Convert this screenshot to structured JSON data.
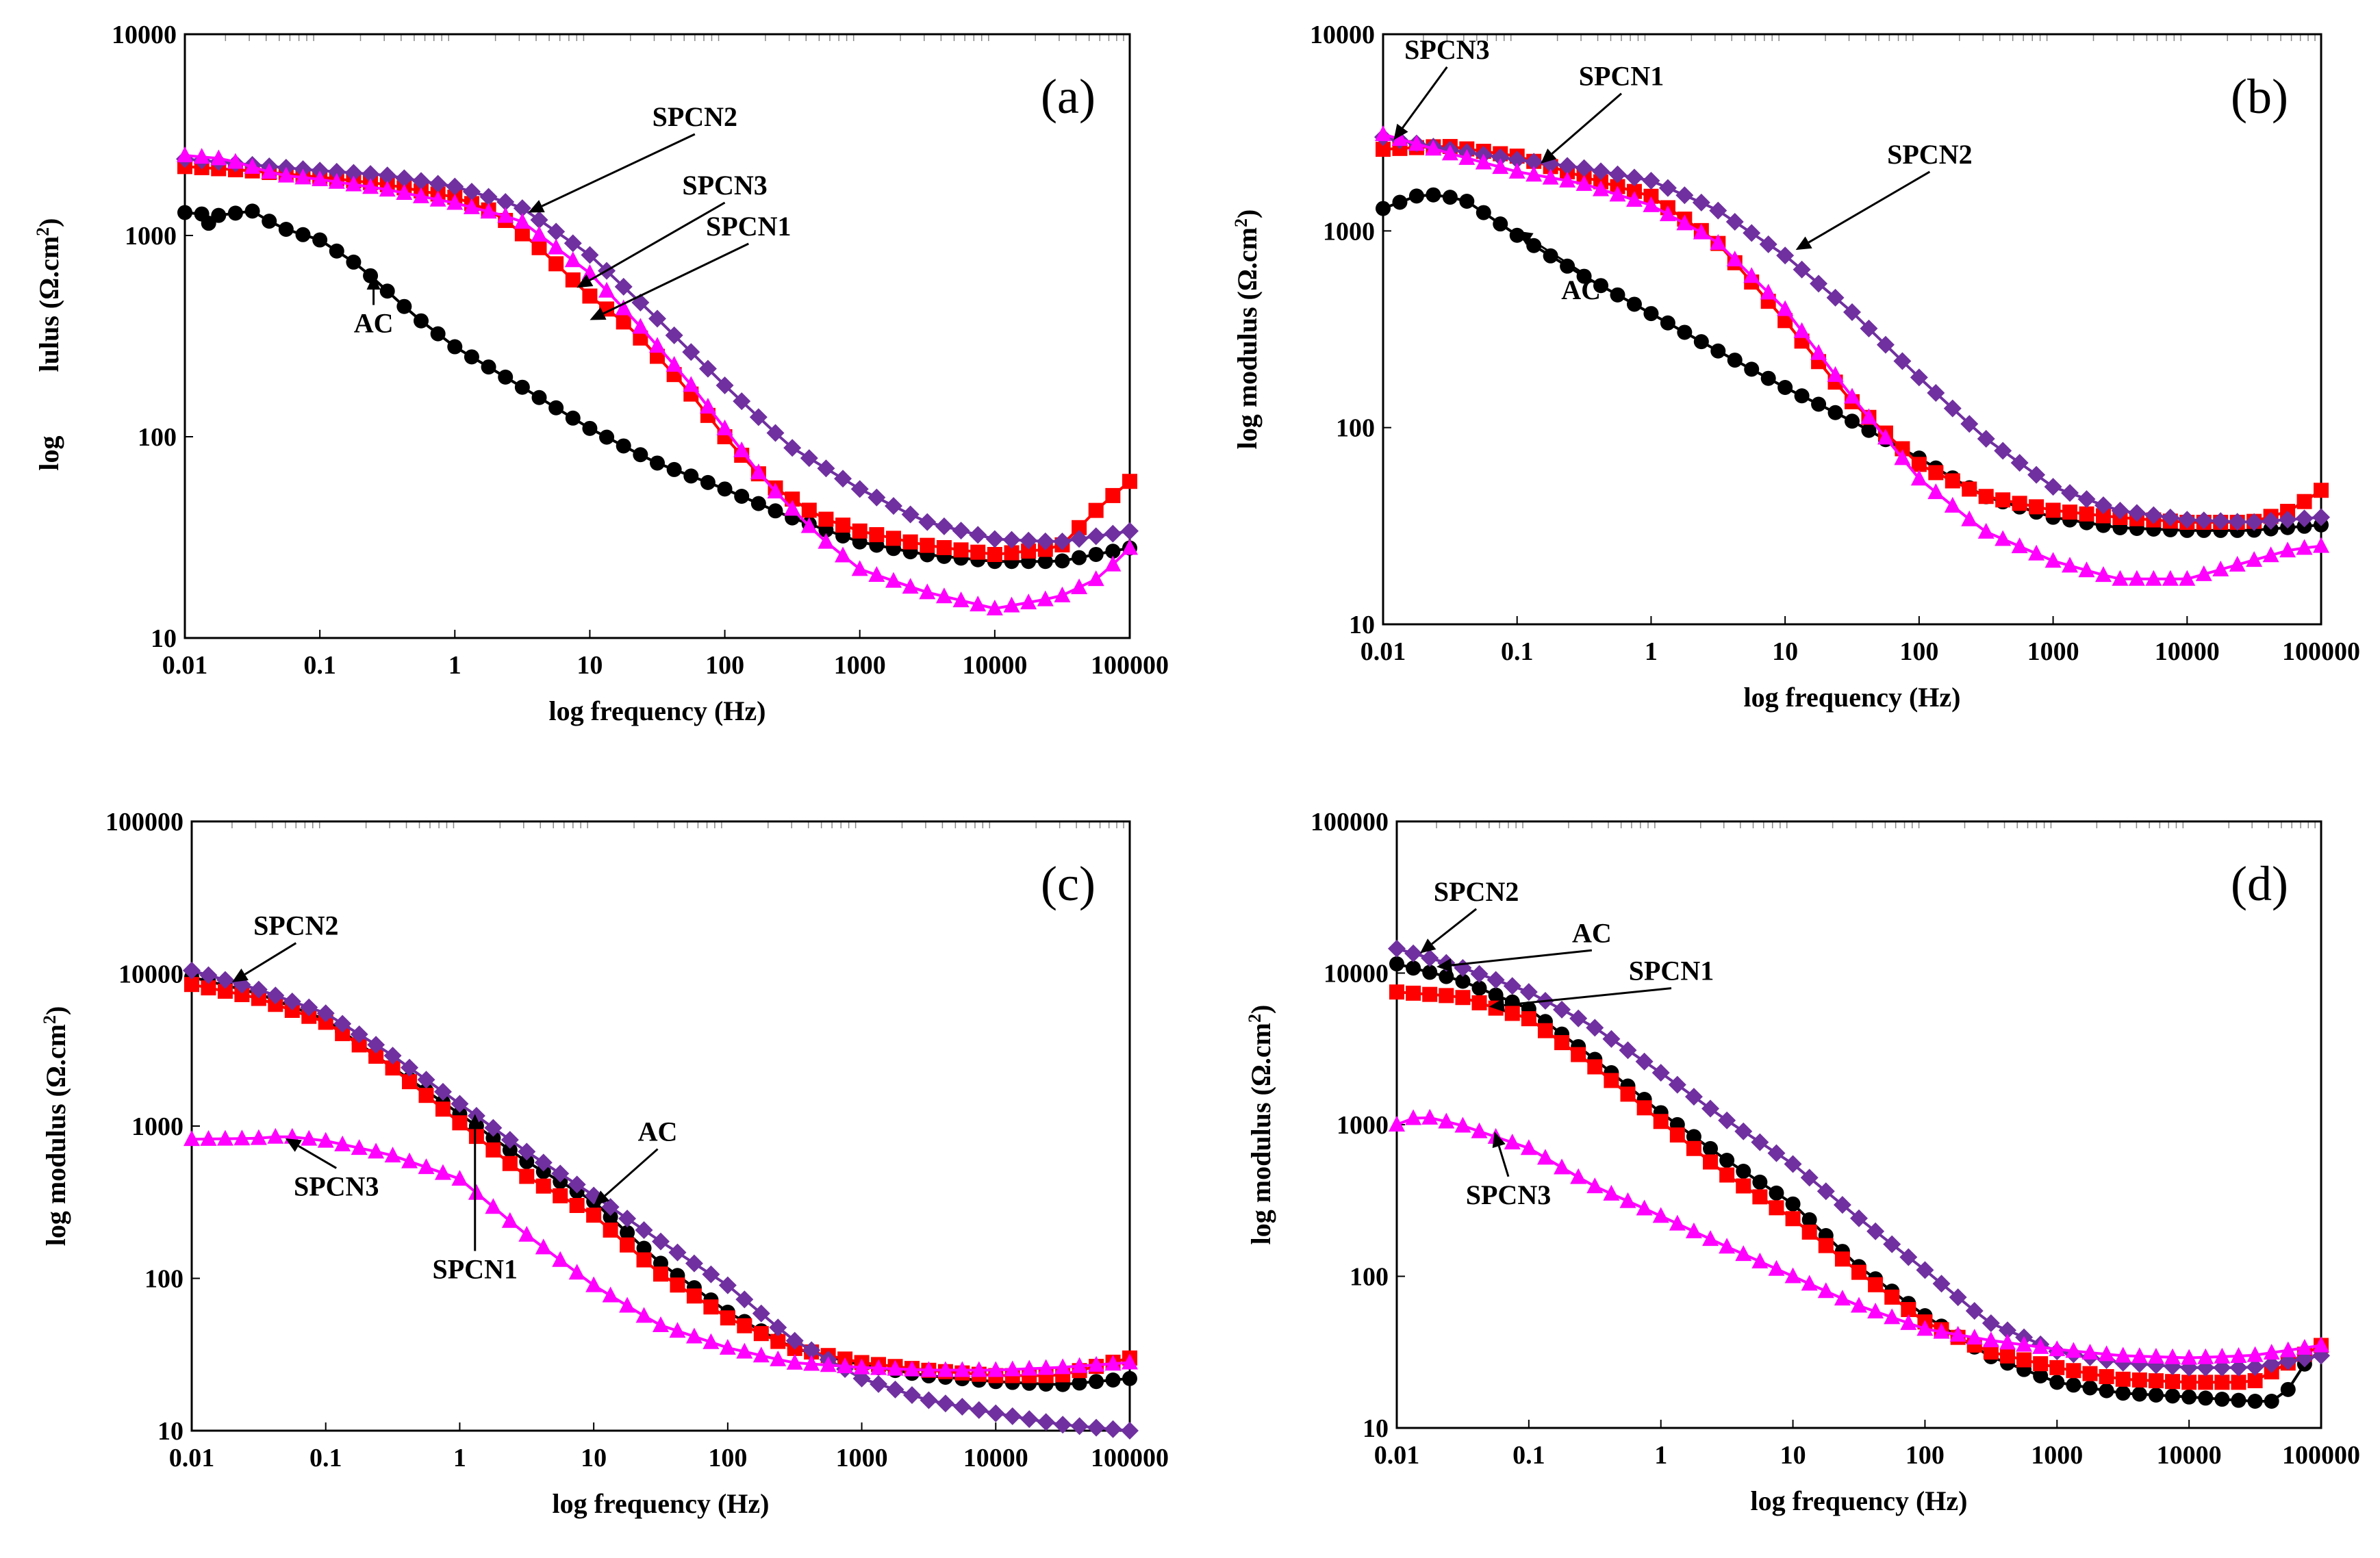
{
  "figure": {
    "colors": {
      "AC": "#000000",
      "SPCN1": "#ff0000",
      "SPCN2": "#7030a0",
      "SPCN3": "#ff00ff"
    },
    "markers": {
      "AC": "circle",
      "SPCN1": "square",
      "SPCN2": "diamond",
      "SPCN3": "triangle"
    }
  },
  "chart_data": [
    {
      "panel": "(a)",
      "type": "scatter",
      "xscale": "log",
      "yscale": "log",
      "xlabel": "log frequency (Hz)",
      "ylabel": "log lulus (Ω.cm²)",
      "ylabel_parts": {
        "main": "lulus (Ω.cm",
        "sup": "2",
        "end": ")"
      },
      "ylabel_sub": "log",
      "xlim": [
        0.01,
        100000
      ],
      "ylim": [
        10,
        10000
      ],
      "xticks": [
        "0.01",
        "0.1",
        "1",
        "10",
        "100",
        "1000",
        "10000",
        "100000"
      ],
      "yticks": [
        "10",
        "100",
        "1000",
        "10000"
      ],
      "series": [
        {
          "name": "AC",
          "x": [
            0.01,
            0.02,
            0.03,
            0.05,
            0.1,
            0.2,
            0.5,
            1,
            3,
            10,
            30,
            100,
            300,
            1000,
            3000,
            10000,
            30000,
            100000
          ],
          "y": [
            1300,
            1250,
            1350,
            1100,
            950,
            700,
            400,
            280,
            180,
            110,
            75,
            55,
            40,
            30,
            26,
            24,
            24,
            28
          ],
          "glitch": [
            0.015,
            1150
          ]
        },
        {
          "name": "SPCN1",
          "x": [
            0.01,
            0.03,
            0.1,
            0.3,
            1,
            2,
            4,
            10,
            20,
            50,
            100,
            200,
            500,
            1000,
            3000,
            10000,
            30000,
            60000,
            100000
          ],
          "y": [
            2200,
            2100,
            1950,
            1800,
            1550,
            1300,
            900,
            500,
            350,
            180,
            100,
            60,
            40,
            34,
            29,
            26,
            28,
            45,
            60
          ]
        },
        {
          "name": "SPCN2",
          "x": [
            0.01,
            0.03,
            0.1,
            0.3,
            1,
            3,
            10,
            30,
            100,
            300,
            1000,
            3000,
            10000,
            30000,
            100000
          ],
          "y": [
            2400,
            2250,
            2100,
            2000,
            1750,
            1400,
            800,
            400,
            180,
            90,
            55,
            38,
            31,
            30,
            34
          ]
        },
        {
          "name": "SPCN3",
          "x": [
            0.01,
            0.02,
            0.05,
            0.1,
            0.3,
            1,
            3,
            10,
            20,
            50,
            100,
            200,
            500,
            1000,
            3000,
            10000,
            30000,
            60000,
            100000
          ],
          "y": [
            2500,
            2400,
            2000,
            1900,
            1700,
            1450,
            1200,
            650,
            400,
            200,
            110,
            60,
            32,
            22,
            17,
            14,
            16,
            20,
            28
          ]
        }
      ],
      "annotations": [
        {
          "text": "SPCN2",
          "xy": [
            3.5,
            1300
          ],
          "xytext": [
            60,
            3500
          ]
        },
        {
          "text": "SPCN3",
          "xy": [
            8,
            550
          ],
          "xytext": [
            100,
            1600
          ]
        },
        {
          "text": "SPCN1",
          "xy": [
            10,
            380
          ],
          "xytext": [
            150,
            1000
          ]
        },
        {
          "text": "AC",
          "xy": [
            0.25,
            640
          ],
          "xytext": [
            0.25,
            330
          ]
        }
      ]
    },
    {
      "panel": "(b)",
      "type": "scatter",
      "xscale": "log",
      "yscale": "log",
      "xlabel": "log frequency (Hz)",
      "ylabel": "log modulus (Ω.cm²)",
      "ylabel_parts": {
        "main": "log modulus (Ω.cm",
        "sup": "2",
        "end": ")"
      },
      "xlim": [
        0.01,
        100000
      ],
      "ylim": [
        10,
        10000
      ],
      "xticks": [
        "0.01",
        "0.1",
        "1",
        "10",
        "100",
        "1000",
        "10000",
        "100000"
      ],
      "yticks": [
        "10",
        "100",
        "1000",
        "10000"
      ],
      "series": [
        {
          "name": "AC",
          "x": [
            0.01,
            0.02,
            0.04,
            0.1,
            0.3,
            1,
            3,
            10,
            30,
            100,
            300,
            1000,
            3000,
            10000,
            30000,
            100000
          ],
          "y": [
            1300,
            1550,
            1450,
            950,
            600,
            380,
            250,
            160,
            110,
            70,
            45,
            35,
            31,
            30,
            30,
            32
          ]
        },
        {
          "name": "SPCN1",
          "x": [
            0.01,
            0.03,
            0.1,
            0.3,
            1,
            3,
            10,
            30,
            100,
            300,
            1000,
            3000,
            10000,
            30000,
            60000,
            100000
          ],
          "y": [
            2600,
            2700,
            2400,
            1900,
            1500,
            900,
            350,
            140,
            65,
            45,
            38,
            35,
            33,
            33,
            38,
            48
          ]
        },
        {
          "name": "SPCN2",
          "x": [
            0.01,
            0.03,
            0.1,
            0.3,
            1,
            3,
            10,
            30,
            100,
            300,
            1000,
            3000,
            10000,
            30000,
            100000
          ],
          "y": [
            3000,
            2600,
            2300,
            2100,
            1800,
            1300,
            750,
            400,
            180,
            90,
            50,
            38,
            34,
            33,
            35
          ]
        },
        {
          "name": "SPCN3",
          "x": [
            0.01,
            0.03,
            0.1,
            0.3,
            1,
            3,
            10,
            30,
            100,
            300,
            1000,
            3000,
            10000,
            30000,
            60000,
            100000
          ],
          "y": [
            3100,
            2500,
            2000,
            1750,
            1350,
            900,
            400,
            150,
            55,
            30,
            21,
            17,
            17,
            21,
            24,
            25
          ]
        }
      ],
      "annotations": [
        {
          "text": "SPCN3",
          "xy": [
            0.012,
            2900
          ],
          "xytext": [
            0.03,
            7500
          ]
        },
        {
          "text": "SPCN1",
          "xy": [
            0.15,
            2200
          ],
          "xytext": [
            0.6,
            5500
          ]
        },
        {
          "text": "SPCN2",
          "xy": [
            12,
            800
          ],
          "xytext": [
            120,
            2200
          ]
        },
        {
          "text": "AC",
          "xy": [
            0.1,
            1000
          ],
          "xytext": [
            0.3,
            450
          ]
        }
      ]
    },
    {
      "panel": "(c)",
      "type": "scatter",
      "xscale": "log",
      "yscale": "log",
      "xlabel": "log frequency (Hz)",
      "ylabel": "log modulus (Ω.cm²)",
      "ylabel_parts": {
        "main": "log modulus (Ω.cm",
        "sup": "2",
        "end": ")"
      },
      "xlim": [
        0.01,
        100000
      ],
      "ylim": [
        10,
        100000
      ],
      "xticks": [
        "0.01",
        "0.1",
        "1",
        "10",
        "100",
        "1000",
        "10000",
        "100000"
      ],
      "yticks": [
        "10",
        "100",
        "1000",
        "10000",
        "100000"
      ],
      "series": [
        {
          "name": "AC",
          "x": [
            0.01,
            0.03,
            0.1,
            0.3,
            1,
            3,
            10,
            30,
            100,
            300,
            1000,
            3000,
            10000,
            30000,
            100000
          ],
          "y": [
            9500,
            7500,
            5000,
            2500,
            1200,
            600,
            320,
            130,
            60,
            35,
            27,
            23,
            21,
            20,
            22
          ]
        },
        {
          "name": "SPCN1",
          "x": [
            0.01,
            0.03,
            0.1,
            0.3,
            1,
            3,
            10,
            30,
            100,
            300,
            1000,
            3000,
            10000,
            30000,
            100000
          ],
          "y": [
            8500,
            7000,
            4800,
            2500,
            1050,
            480,
            260,
            110,
            55,
            35,
            28,
            25,
            23,
            23,
            30
          ]
        },
        {
          "name": "SPCN2",
          "x": [
            0.01,
            0.03,
            0.1,
            0.3,
            1,
            3,
            10,
            30,
            100,
            300,
            1000,
            3000,
            10000,
            30000,
            100000
          ],
          "y": [
            10500,
            8000,
            5500,
            3000,
            1400,
            700,
            350,
            180,
            90,
            40,
            22,
            16,
            13,
            11,
            10
          ]
        },
        {
          "name": "SPCN3",
          "x": [
            0.01,
            0.03,
            0.05,
            0.1,
            0.3,
            1,
            3,
            10,
            30,
            100,
            300,
            1000,
            3000,
            10000,
            30000,
            100000
          ],
          "y": [
            820,
            830,
            860,
            800,
            650,
            450,
            200,
            90,
            50,
            35,
            28,
            26,
            25,
            25,
            26,
            28
          ]
        }
      ],
      "annotations": [
        {
          "text": "SPCN2",
          "xy": [
            0.02,
            8800
          ],
          "xytext": [
            0.06,
            18000
          ]
        },
        {
          "text": "AC",
          "xy": [
            10,
            300
          ],
          "xytext": [
            30,
            800
          ]
        },
        {
          "text": "SPCN1",
          "xy": [
            1.3,
            1200
          ],
          "xytext": [
            1.3,
            100
          ]
        },
        {
          "text": "SPCN3",
          "xy": [
            0.05,
            830
          ],
          "xytext": [
            0.12,
            350
          ]
        }
      ]
    },
    {
      "panel": "(d)",
      "type": "scatter",
      "xscale": "log",
      "yscale": "log",
      "xlabel": "log frequency (Hz)",
      "ylabel": "log modulus (Ω.cm²)",
      "ylabel_parts": {
        "main": "log modulus (Ω.cm",
        "sup": "2",
        "end": ")"
      },
      "xlim": [
        0.01,
        100000
      ],
      "ylim": [
        10,
        100000
      ],
      "xticks": [
        "0.01",
        "0.1",
        "1",
        "10",
        "100",
        "1000",
        "10000",
        "100000"
      ],
      "yticks": [
        "10",
        "100",
        "1000",
        "10000",
        "100000"
      ],
      "series": [
        {
          "name": "AC",
          "x": [
            0.01,
            0.03,
            0.1,
            0.3,
            1,
            3,
            10,
            30,
            100,
            300,
            1000,
            3000,
            10000,
            30000,
            50000,
            70000,
            100000
          ],
          "y": [
            11500,
            9000,
            5800,
            2800,
            1200,
            600,
            300,
            120,
            55,
            30,
            20,
            17,
            16,
            15,
            15,
            25,
            33
          ]
        },
        {
          "name": "SPCN1",
          "x": [
            0.01,
            0.03,
            0.1,
            0.3,
            1,
            3,
            10,
            30,
            100,
            300,
            1000,
            3000,
            10000,
            30000,
            100000
          ],
          "y": [
            7500,
            7000,
            5000,
            2500,
            1050,
            480,
            240,
            110,
            50,
            32,
            25,
            21,
            20,
            20,
            35
          ]
        },
        {
          "name": "SPCN2",
          "x": [
            0.01,
            0.03,
            0.1,
            0.3,
            1,
            3,
            10,
            30,
            100,
            300,
            1000,
            3000,
            10000,
            30000,
            100000
          ],
          "y": [
            14500,
            11000,
            7500,
            4500,
            2200,
            1100,
            550,
            250,
            110,
            50,
            32,
            27,
            25,
            25,
            30
          ]
        },
        {
          "name": "SPCN3",
          "x": [
            0.01,
            0.015,
            0.03,
            0.1,
            0.3,
            1,
            3,
            10,
            30,
            100,
            300,
            1000,
            3000,
            10000,
            30000,
            100000
          ],
          "y": [
            1000,
            1150,
            1000,
            700,
            400,
            250,
            160,
            100,
            65,
            45,
            38,
            33,
            30,
            29,
            30,
            35
          ]
        }
      ],
      "annotations": [
        {
          "text": "SPCN2",
          "xy": [
            0.015,
            13500
          ],
          "xytext": [
            0.04,
            30000
          ]
        },
        {
          "text": "AC",
          "xy": [
            0.02,
            11000
          ],
          "xytext": [
            0.3,
            16000
          ]
        },
        {
          "text": "SPCN1",
          "xy": [
            0.05,
            6000
          ],
          "xytext": [
            1.2,
            9000
          ]
        },
        {
          "text": "SPCN3",
          "xy": [
            0.055,
            900
          ],
          "xytext": [
            0.07,
            300
          ]
        }
      ]
    }
  ]
}
